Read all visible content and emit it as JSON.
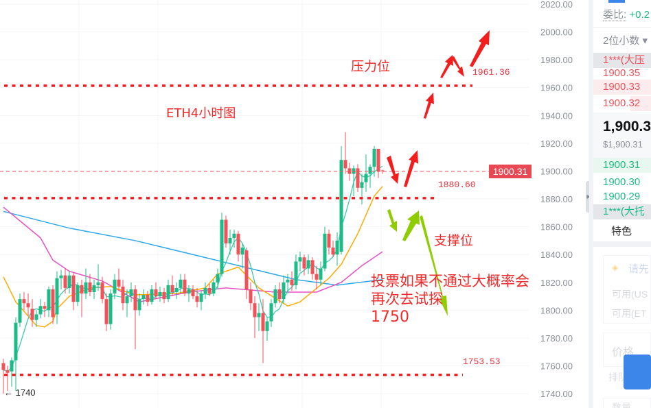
{
  "chart_data": {
    "type": "candlestick",
    "title": "ETH4小时图",
    "y_ticks": [
      "2020.00",
      "2000.00",
      "1980.00",
      "1960.00",
      "1940.00",
      "1920.00",
      "1900.00",
      "1880.00",
      "1860.00",
      "1840.00",
      "1820.00",
      "1800.00",
      "1780.00",
      "1760.00",
      "1740.00"
    ],
    "ylim": [
      1740,
      2020
    ],
    "current_price": "1900.31",
    "low_marker": "← 1740",
    "colors": {
      "up": "#1dbb87",
      "down": "#f0525a",
      "ma_short": "#3cc9b0",
      "ma_orange": "#ffaa00",
      "ma_magenta": "#e84fc4",
      "ma_blue": "#2ea7e8",
      "annotation_red": "#f21d1d",
      "annotation_green": "#8fcc00"
    },
    "candles": [
      [
        1762,
        1765,
        1740,
        1757
      ],
      [
        1757,
        1760,
        1742,
        1755
      ],
      [
        1756,
        1766,
        1745,
        1764
      ],
      [
        1764,
        1795,
        1742,
        1791
      ],
      [
        1791,
        1812,
        1788,
        1808
      ],
      [
        1808,
        1813,
        1800,
        1805
      ],
      [
        1805,
        1812,
        1796,
        1802
      ],
      [
        1801,
        1808,
        1788,
        1793
      ],
      [
        1793,
        1800,
        1788,
        1797
      ],
      [
        1797,
        1808,
        1794,
        1803
      ],
      [
        1803,
        1806,
        1795,
        1801
      ],
      [
        1800,
        1817,
        1795,
        1815
      ],
      [
        1815,
        1818,
        1790,
        1795
      ],
      [
        1797,
        1828,
        1790,
        1823
      ],
      [
        1823,
        1829,
        1815,
        1825
      ],
      [
        1825,
        1830,
        1812,
        1816
      ],
      [
        1816,
        1828,
        1812,
        1825
      ],
      [
        1825,
        1827,
        1800,
        1806
      ],
      [
        1806,
        1820,
        1803,
        1818
      ],
      [
        1818,
        1822,
        1795,
        1812
      ],
      [
        1812,
        1830,
        1808,
        1820
      ],
      [
        1820,
        1826,
        1810,
        1813
      ],
      [
        1813,
        1822,
        1808,
        1818
      ],
      [
        1818,
        1833,
        1814,
        1820
      ],
      [
        1820,
        1824,
        1805,
        1808
      ],
      [
        1808,
        1812,
        1785,
        1790
      ],
      [
        1790,
        1815,
        1786,
        1812
      ],
      [
        1812,
        1826,
        1808,
        1822
      ],
      [
        1822,
        1830,
        1815,
        1817
      ],
      [
        1817,
        1822,
        1800,
        1805
      ],
      [
        1805,
        1815,
        1795,
        1810
      ],
      [
        1810,
        1820,
        1806,
        1815
      ],
      [
        1815,
        1818,
        1772,
        1800
      ],
      [
        1800,
        1812,
        1796,
        1808
      ],
      [
        1808,
        1815,
        1804,
        1811
      ],
      [
        1811,
        1814,
        1803,
        1806
      ],
      [
        1806,
        1818,
        1804,
        1815
      ],
      [
        1815,
        1820,
        1808,
        1810
      ],
      [
        1810,
        1817,
        1806,
        1813
      ],
      [
        1813,
        1816,
        1805,
        1808
      ],
      [
        1808,
        1822,
        1806,
        1818
      ],
      [
        1818,
        1825,
        1810,
        1813
      ],
      [
        1813,
        1820,
        1808,
        1816
      ],
      [
        1816,
        1826,
        1812,
        1822
      ],
      [
        1822,
        1826,
        1810,
        1812
      ],
      [
        1812,
        1818,
        1806,
        1815
      ],
      [
        1815,
        1818,
        1808,
        1810
      ],
      [
        1810,
        1816,
        1802,
        1806
      ],
      [
        1806,
        1814,
        1800,
        1812
      ],
      [
        1812,
        1820,
        1808,
        1816
      ],
      [
        1816,
        1819,
        1810,
        1812
      ],
      [
        1812,
        1822,
        1810,
        1820
      ],
      [
        1820,
        1830,
        1815,
        1826
      ],
      [
        1826,
        1870,
        1824,
        1865
      ],
      [
        1865,
        1868,
        1845,
        1848
      ],
      [
        1848,
        1858,
        1840,
        1852
      ],
      [
        1852,
        1858,
        1845,
        1855
      ],
      [
        1855,
        1857,
        1835,
        1840
      ],
      [
        1840,
        1848,
        1830,
        1845
      ],
      [
        1843,
        1845,
        1808,
        1815
      ],
      [
        1815,
        1820,
        1800,
        1805
      ],
      [
        1805,
        1810,
        1780,
        1795
      ],
      [
        1795,
        1805,
        1785,
        1798
      ],
      [
        1798,
        1808,
        1762,
        1785
      ],
      [
        1785,
        1795,
        1778,
        1792
      ],
      [
        1792,
        1808,
        1788,
        1805
      ],
      [
        1805,
        1818,
        1802,
        1815
      ],
      [
        1815,
        1820,
        1805,
        1808
      ],
      [
        1808,
        1825,
        1805,
        1820
      ],
      [
        1820,
        1826,
        1812,
        1822
      ],
      [
        1822,
        1828,
        1814,
        1818
      ],
      [
        1818,
        1840,
        1815,
        1835
      ],
      [
        1835,
        1842,
        1828,
        1838
      ],
      [
        1838,
        1840,
        1825,
        1830
      ],
      [
        1830,
        1840,
        1826,
        1836
      ],
      [
        1836,
        1838,
        1822,
        1826
      ],
      [
        1826,
        1832,
        1815,
        1822
      ],
      [
        1822,
        1835,
        1818,
        1830
      ],
      [
        1830,
        1860,
        1828,
        1855
      ],
      [
        1855,
        1858,
        1840,
        1845
      ],
      [
        1845,
        1850,
        1838,
        1840
      ],
      [
        1840,
        1856,
        1832,
        1850
      ],
      [
        1842,
        1918,
        1840,
        1908
      ],
      [
        1908,
        1928,
        1898,
        1902
      ],
      [
        1902,
        1906,
        1893,
        1898
      ],
      [
        1898,
        1904,
        1882,
        1902
      ],
      [
        1902,
        1905,
        1885,
        1888
      ],
      [
        1888,
        1898,
        1876,
        1892
      ],
      [
        1892,
        1912,
        1885,
        1898
      ],
      [
        1898,
        1905,
        1888,
        1903
      ],
      [
        1903,
        1918,
        1896,
        1916
      ],
      [
        1916,
        1916,
        1895,
        1900
      ],
      [
        1900.5,
        1901,
        1898,
        1900.31
      ]
    ],
    "ma_blue": [
      [
        0,
        1871
      ],
      [
        16,
        1859
      ],
      [
        32,
        1850
      ],
      [
        46,
        1840
      ],
      [
        71,
        1822
      ],
      [
        81,
        1818
      ],
      [
        92,
        1822
      ]
    ],
    "ma_magenta": [
      [
        0,
        1874
      ],
      [
        9,
        1852
      ],
      [
        12,
        1836
      ],
      [
        16,
        1828
      ],
      [
        24,
        1821
      ],
      [
        33,
        1806
      ],
      [
        45,
        1813
      ],
      [
        54,
        1816
      ],
      [
        66,
        1813
      ],
      [
        76,
        1813
      ],
      [
        82,
        1820
      ],
      [
        87,
        1832
      ],
      [
        92,
        1842
      ]
    ],
    "ma_orange": [
      [
        0,
        1824
      ],
      [
        3,
        1806
      ],
      [
        8,
        1789
      ],
      [
        10,
        1788
      ],
      [
        12,
        1792
      ],
      [
        13,
        1801
      ],
      [
        16,
        1810
      ],
      [
        21,
        1816
      ],
      [
        26,
        1817
      ],
      [
        32,
        1811
      ],
      [
        42,
        1812
      ],
      [
        49,
        1816
      ],
      [
        52,
        1826
      ],
      [
        57,
        1831
      ],
      [
        62,
        1816
      ],
      [
        69,
        1803
      ],
      [
        72,
        1806
      ],
      [
        79,
        1823
      ],
      [
        82,
        1833
      ],
      [
        86,
        1855
      ],
      [
        90,
        1882
      ],
      [
        92,
        1889
      ]
    ],
    "levels": [
      {
        "value": 1961.36,
        "label": "1961.36"
      },
      {
        "value": 1880.6,
        "label": "1880.60"
      },
      {
        "value": 1753.53,
        "label": "1753.53"
      }
    ],
    "annotations": {
      "resistance": "压力位",
      "title": "ETH4小时图",
      "support": "支撑位",
      "note_line1": "投票如果不通过大概率会再次去试探",
      "note_line2": "1750"
    }
  },
  "panel": {
    "ratio_label": "委比:",
    "ratio_value": "+0.2",
    "decimals": "2位小数",
    "ask_big": "1***(大压",
    "asks": [
      "1900.35",
      "1900.33",
      "1900.32"
    ],
    "last_price": "1,900.3",
    "last_usd": "$1,900.31",
    "bids": [
      "1900.31",
      "1900.30",
      "1900.29"
    ],
    "bid_big": "1***(大托",
    "feature": "特色",
    "login_prompt": "请先",
    "avail_usdt": "可用(US",
    "avail_eth": "可用(ET",
    "price_label": "价格",
    "queue_label": "排队",
    "qty_label": "数量"
  }
}
